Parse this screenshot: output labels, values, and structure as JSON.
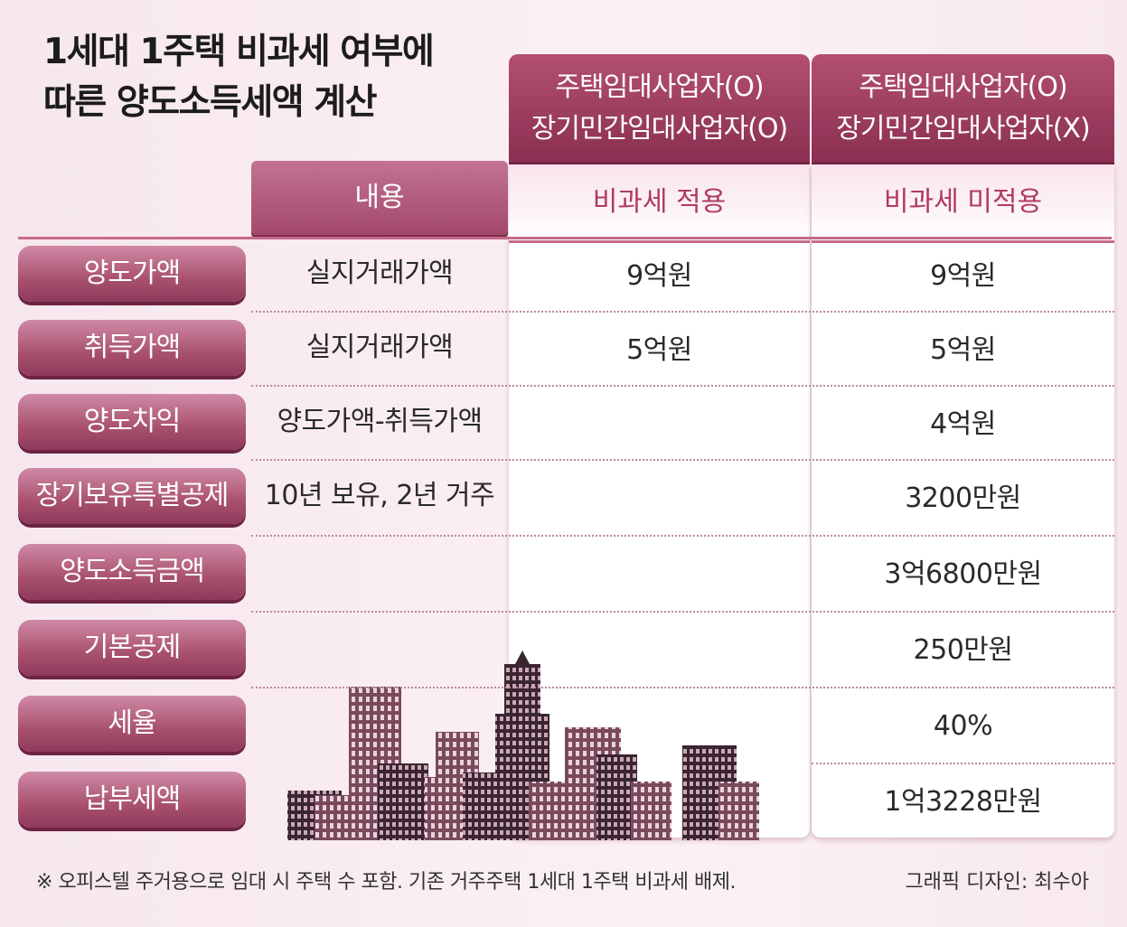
{
  "title": [
    "1세대 1주택 비과세 여부에",
    "따른 양도소득세액 계산"
  ],
  "columns": [
    {
      "header": [
        "주택임대사업자(O)",
        "장기민간임대사업자(O)"
      ],
      "status": "비과세 적용"
    },
    {
      "header": [
        "주택임대사업자(O)",
        "장기민간임대사업자(X)"
      ],
      "status": "비과세 미적용"
    }
  ],
  "content_header": "내용",
  "rows": [
    {
      "label": "양도가액",
      "content": "실지거래가액",
      "col1": "9억원",
      "col2": "9억원"
    },
    {
      "label": "취득가액",
      "content": "실지거래가액",
      "col1": "5억원",
      "col2": "5억원"
    },
    {
      "label": "양도차익",
      "content": "양도가액-취득가액",
      "col1": "",
      "col2": "4억원"
    },
    {
      "label": "장기보유특별공제",
      "content": "10년 보유, 2년 거주",
      "col1": "",
      "col2": "3200만원"
    },
    {
      "label": "양도소득금액",
      "content": "",
      "col1": "",
      "col2": "3억6800만원"
    },
    {
      "label": "기본공제",
      "content": "",
      "col1": "",
      "col2": "250만원"
    },
    {
      "label": "세율",
      "content": "",
      "col1": "",
      "col2": "40%"
    },
    {
      "label": "납부세액",
      "content": "",
      "col1": "",
      "col2": "1억3228만원"
    }
  ],
  "footnote": "※ 오피스텔 주거용으로 임대 시 주택 수 포함. 기존 거주주택 1세대 1주택 비과세 배제.",
  "credit": "그래픽 디자인: 최수아",
  "colors": {
    "header": "#9c3c60",
    "label": "#a8506f",
    "accent": "#b03a63"
  }
}
